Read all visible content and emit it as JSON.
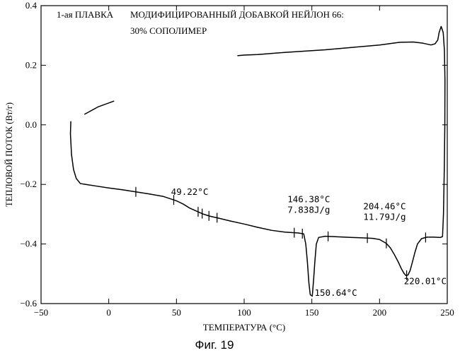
{
  "chart_data": {
    "type": "line",
    "title": "МОДИФИЦИРОВАННЫЙ ДОБАВКОЙ НЕЙЛОН 66:",
    "subtitle": "30% СОПОЛИМЕР",
    "run_label": "1-ая ПЛАВКА",
    "xlabel_main": "ТЕМПЕРАТУРА (",
    "xlabel_unit": "°C)",
    "ylabel": "ТЕПЛОВОЙ ПОТОК (Вт/г)",
    "caption": "Фиг. 19",
    "xlim": [
      -50,
      250
    ],
    "ylim": [
      -0.6,
      0.4
    ],
    "x_ticks": [
      -50,
      0,
      50,
      100,
      150,
      200,
      250
    ],
    "x_tick_labels": [
      "−50",
      "0",
      "50",
      "100",
      "150",
      "200",
      "250"
    ],
    "y_ticks": [
      -0.6,
      -0.4,
      -0.2,
      0.0,
      0.2,
      0.4
    ],
    "y_tick_labels": [
      "−0.6",
      "−0.4",
      "−0.2",
      "0.0",
      "0.2",
      "0.4"
    ],
    "grid": false,
    "line_color": "#000000",
    "series": [
      {
        "segments": [
          [
            [
              4,
              0.08
            ],
            [
              -8,
              0.06
            ],
            [
              -18,
              0.035
            ]
          ],
          [
            [
              -28,
              0.012
            ],
            [
              -28.3,
              -0.03
            ],
            [
              -27.5,
              -0.1
            ],
            [
              -26,
              -0.15
            ],
            [
              -24,
              -0.18
            ],
            [
              -21,
              -0.197
            ],
            [
              -17,
              -0.2
            ],
            [
              -10,
              -0.205
            ],
            [
              0,
              -0.212
            ],
            [
              10,
              -0.218
            ],
            [
              20,
              -0.225
            ],
            [
              30,
              -0.232
            ],
            [
              40,
              -0.24
            ],
            [
              50,
              -0.255
            ],
            [
              55,
              -0.266
            ],
            [
              60,
              -0.28
            ],
            [
              65,
              -0.29
            ],
            [
              70,
              -0.3
            ],
            [
              75,
              -0.307
            ],
            [
              80,
              -0.312
            ],
            [
              90,
              -0.323
            ],
            [
              100,
              -0.333
            ],
            [
              110,
              -0.344
            ],
            [
              120,
              -0.354
            ],
            [
              130,
              -0.36
            ],
            [
              140,
              -0.363
            ],
            [
              144,
              -0.366
            ],
            [
              145.5,
              -0.4
            ],
            [
              146.7,
              -0.46
            ],
            [
              147.8,
              -0.53
            ],
            [
              148.8,
              -0.57
            ],
            [
              150.3,
              -0.575
            ],
            [
              151.3,
              -0.52
            ],
            [
              152.2,
              -0.46
            ],
            [
              153.3,
              -0.4
            ],
            [
              155,
              -0.378
            ],
            [
              160,
              -0.374
            ],
            [
              170,
              -0.376
            ],
            [
              180,
              -0.378
            ],
            [
              190,
              -0.38
            ],
            [
              195,
              -0.381
            ],
            [
              200,
              -0.385
            ],
            [
              205,
              -0.398
            ],
            [
              208,
              -0.413
            ],
            [
              211,
              -0.436
            ],
            [
              214,
              -0.462
            ],
            [
              216,
              -0.482
            ],
            [
              218,
              -0.498
            ],
            [
              219.5,
              -0.506
            ],
            [
              221,
              -0.504
            ],
            [
              222.5,
              -0.49
            ],
            [
              224,
              -0.465
            ],
            [
              226,
              -0.43
            ],
            [
              228,
              -0.4
            ],
            [
              231,
              -0.382
            ],
            [
              235,
              -0.377
            ],
            [
              240,
              -0.377
            ],
            [
              245,
              -0.378
            ],
            [
              246.5,
              -0.375
            ],
            [
              247.2,
              -0.3
            ],
            [
              247.8,
              -0.15
            ],
            [
              248.2,
              0.0
            ],
            [
              248.3,
              0.15
            ],
            [
              247.9,
              0.25
            ],
            [
              247,
              0.31
            ],
            [
              245.5,
              0.33
            ],
            [
              244,
              0.31
            ],
            [
              243,
              0.285
            ],
            [
              241,
              0.272
            ],
            [
              238,
              0.268
            ],
            [
              232,
              0.274
            ],
            [
              225,
              0.278
            ],
            [
              215,
              0.277
            ],
            [
              200,
              0.268
            ],
            [
              180,
              0.26
            ],
            [
              160,
              0.252
            ],
            [
              130,
              0.243
            ],
            [
              110,
              0.236
            ],
            [
              100,
              0.234
            ],
            [
              95,
              0.232
            ]
          ]
        ]
      }
    ],
    "tick_marks_x": [
      20,
      48,
      66,
      69,
      74,
      80,
      137,
      143,
      162,
      191,
      205,
      220,
      234
    ],
    "annotations": [
      {
        "lines": [
          "49.22°C"
        ],
        "x": 46,
        "y": -0.235
      },
      {
        "lines": [
          "146.38°C",
          "7.838J/g"
        ],
        "x": 132,
        "y": -0.26
      },
      {
        "lines": [
          "150.64°C"
        ],
        "x": 152,
        "y": -0.574
      },
      {
        "lines": [
          "204.46°C",
          "11.79J/g"
        ],
        "x": 188,
        "y": -0.284
      },
      {
        "lines": [
          "220.01°C"
        ],
        "x": 218,
        "y": -0.535
      }
    ]
  }
}
